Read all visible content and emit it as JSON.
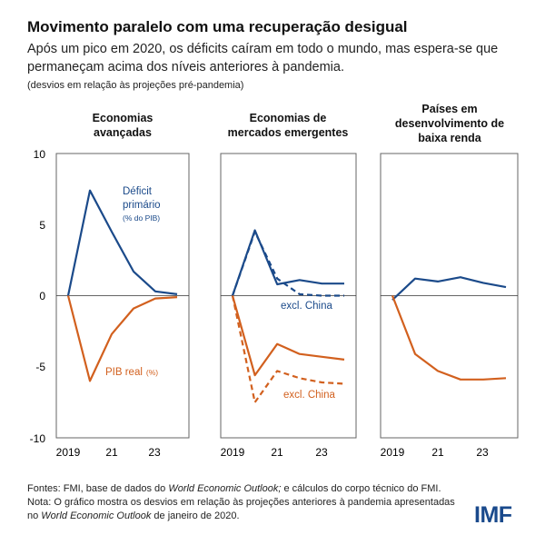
{
  "header": {
    "title": "Movimento paralelo com uma recuperação desigual",
    "subtitle": "Após um pico em 2020, os déficits caíram em todo o mundo, mas espera-se que permaneçam acima dos níveis anteriores à pandemia.",
    "note": "(desvios em relação às projeções pré-pandemia)"
  },
  "footer": {
    "sources_a": "Fontes: FMI, base de dados do ",
    "sources_b": "World Economic Outlook;",
    "sources_c": " e cálculos do corpo técnico do FMI.",
    "note_a": "Nota: O gráfico mostra os desvios em relação às projeções anteriores à pandemia apresentadas no ",
    "note_b": "World Economic Outlook",
    "note_c": " de janeiro de 2020.",
    "logo": "IMF"
  },
  "colors": {
    "deficit": "#1b4a8a",
    "gdp": "#d2601e",
    "axis": "#555555"
  },
  "chart_data": [
    {
      "type": "line",
      "title": "Economias avançadas",
      "title_lines": [
        "Economias",
        "avançadas"
      ],
      "x": [
        2019,
        2020,
        2021,
        2022,
        2023,
        2024
      ],
      "x_tick_labels": [
        "2019",
        "21",
        "23"
      ],
      "y_ticks": [
        "10",
        "5",
        "0",
        "-5",
        "-10"
      ],
      "ylim": [
        -10,
        10
      ],
      "series": [
        {
          "name": "Déficit primário (% do PIB)",
          "color": "deficit",
          "dashed": false,
          "values": [
            0,
            7.4,
            4.5,
            1.7,
            0.3,
            0.1
          ]
        },
        {
          "name": "PIB real (%)",
          "color": "gdp",
          "dashed": false,
          "values": [
            0,
            -6.0,
            -2.7,
            -0.9,
            -0.2,
            -0.1
          ]
        }
      ],
      "annotations": [
        {
          "text": "Déficit",
          "color": "deficit"
        },
        {
          "text": "primário",
          "color": "deficit"
        },
        {
          "text": "(% do PIB)",
          "color": "deficit"
        },
        {
          "text": "PIB real",
          "color": "gdp"
        },
        {
          "text": "(%)",
          "color": "gdp"
        }
      ]
    },
    {
      "type": "line",
      "title": "Economias de mercados emergentes",
      "title_lines": [
        "Economias de",
        "mercados emergentes"
      ],
      "x": [
        2019,
        2020,
        2021,
        2022,
        2023,
        2024
      ],
      "x_tick_labels": [
        "2019",
        "21",
        "23"
      ],
      "ylim": [
        -10,
        10
      ],
      "series": [
        {
          "color": "deficit",
          "dashed": false,
          "values": [
            0,
            4.6,
            0.8,
            1.1,
            0.85,
            0.85
          ]
        },
        {
          "name": "excl. China",
          "color": "deficit",
          "dashed": true,
          "values": [
            0,
            4.5,
            1.2,
            0.1,
            0.0,
            0.0
          ]
        },
        {
          "color": "gdp",
          "dashed": false,
          "values": [
            0,
            -5.6,
            -3.4,
            -4.1,
            -4.3,
            -4.5
          ]
        },
        {
          "name": "excl. China",
          "color": "gdp",
          "dashed": true,
          "values": [
            0,
            -7.5,
            -5.3,
            -5.8,
            -6.1,
            -6.2
          ]
        }
      ],
      "annotations": [
        {
          "text": "excl. China",
          "color": "deficit"
        },
        {
          "text": "excl. China",
          "color": "gdp"
        }
      ]
    },
    {
      "type": "line",
      "title": "Países em desenvolvimento de baixa renda",
      "title_lines": [
        "Países em",
        "desenvolvimento de",
        "baixa renda"
      ],
      "x": [
        2019,
        2020,
        2021,
        2022,
        2023,
        2024
      ],
      "x_tick_labels": [
        "2019",
        "21",
        "23"
      ],
      "ylim": [
        -10,
        10
      ],
      "series": [
        {
          "color": "deficit",
          "dashed": false,
          "values": [
            -0.3,
            1.2,
            1.0,
            1.3,
            0.9,
            0.6
          ]
        },
        {
          "color": "gdp",
          "dashed": false,
          "values": [
            0,
            -4.1,
            -5.3,
            -5.9,
            -5.9,
            -5.8
          ]
        }
      ]
    }
  ]
}
